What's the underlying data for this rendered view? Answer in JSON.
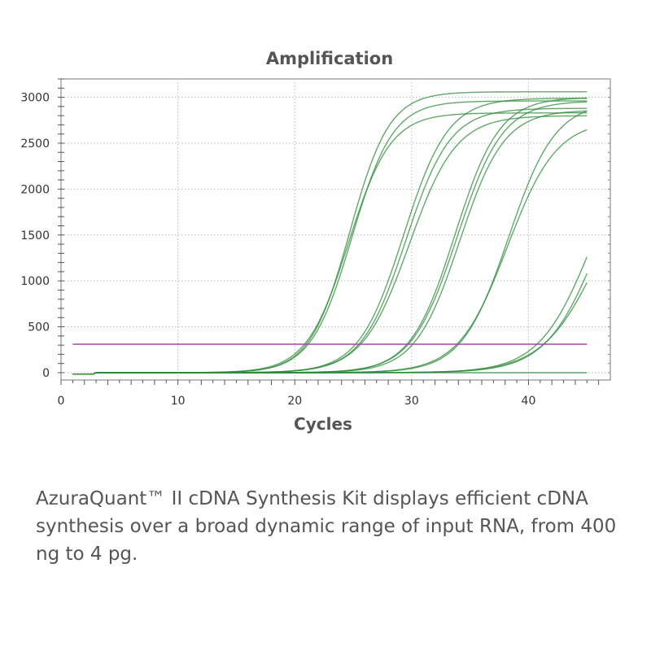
{
  "chart_data": {
    "type": "line",
    "title": "Amplification",
    "xlabel": "Cycles",
    "ylabel": "",
    "xlim": [
      0,
      47
    ],
    "ylim": [
      -80,
      3200
    ],
    "x_ticks": [
      0,
      10,
      20,
      30,
      40
    ],
    "y_ticks": [
      0,
      500,
      1000,
      1500,
      2000,
      2500,
      3000
    ],
    "grid": true,
    "cycle_range": [
      1,
      45
    ],
    "threshold": {
      "value": 310,
      "color": "#9b4f9b"
    },
    "curve_model": "logistic: plateau / (1 + exp(-(cycle - midpoint) / slope))",
    "series": [
      {
        "plateau": 3060,
        "midpoint": 24.7,
        "slope": 1.7
      },
      {
        "plateau": 2960,
        "midpoint": 24.9,
        "slope": 1.75
      },
      {
        "plateau": 2830,
        "midpoint": 24.6,
        "slope": 1.8
      },
      {
        "plateau": 2990,
        "midpoint": 29.3,
        "slope": 1.9
      },
      {
        "plateau": 2880,
        "midpoint": 29.5,
        "slope": 1.9
      },
      {
        "plateau": 2800,
        "midpoint": 29.8,
        "slope": 2.0
      },
      {
        "plateau": 3000,
        "midpoint": 33.7,
        "slope": 1.9
      },
      {
        "plateau": 2960,
        "midpoint": 33.9,
        "slope": 1.95
      },
      {
        "plateau": 2860,
        "midpoint": 34.1,
        "slope": 1.9
      },
      {
        "plateau": 2950,
        "midpoint": 38.3,
        "slope": 2.0
      },
      {
        "plateau": 2750,
        "midpoint": 38.2,
        "slope": 2.1
      },
      {
        "plateau": 2900,
        "midpoint": 45.6,
        "slope": 2.3
      },
      {
        "plateau": 2900,
        "midpoint": 46.2,
        "slope": 2.3
      },
      {
        "plateau": 2700,
        "midpoint": 46.4,
        "slope": 2.5
      },
      {
        "plateau": 0,
        "midpoint": 0,
        "slope": 1
      }
    ],
    "line_color": "#2e8b3a"
  },
  "caption": "AzuraQuant™ II cDNA Synthesis Kit displays efficient cDNA synthesis over a broad dynamic range of input RNA, from 400 ng to 4 pg."
}
